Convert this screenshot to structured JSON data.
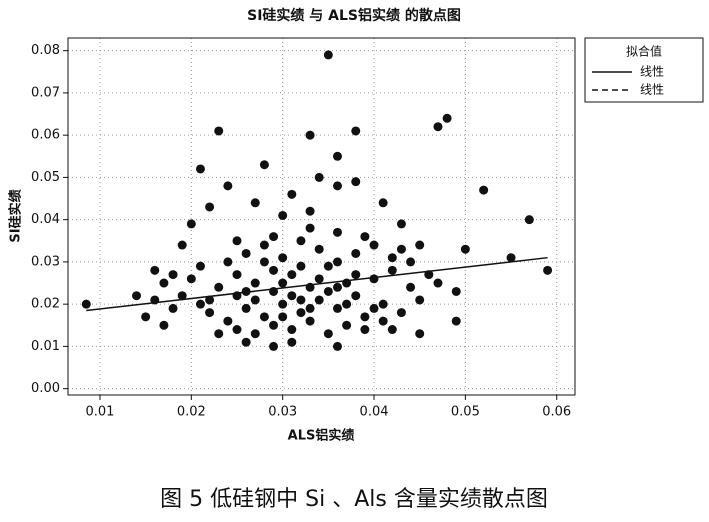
{
  "chart_data": {
    "type": "scatter",
    "title": "SI硅实绩 与 ALS铝实绩 的散点图",
    "x_label": "ALS铝实绩",
    "y_label": "SI硅实绩",
    "caption": "图 5   低硅钢中 Si 、Als 含量实绩散点图",
    "xlim": [
      0.0065,
      0.062
    ],
    "ylim": [
      -0.0015,
      0.083
    ],
    "xticks": [
      0.01,
      0.02,
      0.03,
      0.04,
      0.05,
      0.06
    ],
    "yticks": [
      {
        "value": 0,
        "label": "0.00"
      },
      0.01,
      0.02,
      0.03,
      0.04,
      0.05,
      0.06,
      0.07,
      0.08
    ],
    "grid": true,
    "color": "#111111",
    "points": {
      "x": [
        0.0085,
        0.035,
        0.023,
        0.033,
        0.038,
        0.048,
        0.047,
        0.036,
        0.021,
        0.028,
        0.034,
        0.024,
        0.036,
        0.038,
        0.052,
        0.031,
        0.022,
        0.027,
        0.041,
        0.057,
        0.059,
        0.05,
        0.049,
        0.049,
        0.055,
        0.015,
        0.016,
        0.014,
        0.017,
        0.019,
        0.02,
        0.043,
        0.03,
        0.033,
        0.029,
        0.031,
        0.036,
        0.026,
        0.042,
        0.045,
        0.02,
        0.021,
        0.022,
        0.023,
        0.024,
        0.025,
        0.026,
        0.027,
        0.028,
        0.029,
        0.03,
        0.031,
        0.032,
        0.033,
        0.034,
        0.035,
        0.036,
        0.037,
        0.038,
        0.039,
        0.04,
        0.041,
        0.042,
        0.043,
        0.044,
        0.045,
        0.046,
        0.019,
        0.018,
        0.017,
        0.024,
        0.026,
        0.028,
        0.03,
        0.032,
        0.034,
        0.036,
        0.038,
        0.04,
        0.042,
        0.025,
        0.027,
        0.029,
        0.031,
        0.033,
        0.035,
        0.037,
        0.039,
        0.041,
        0.023,
        0.029,
        0.031,
        0.033,
        0.035,
        0.027,
        0.025,
        0.03,
        0.032,
        0.034,
        0.036,
        0.028,
        0.03,
        0.032,
        0.026,
        0.038,
        0.04,
        0.022,
        0.044,
        0.047,
        0.021,
        0.036,
        0.033,
        0.029,
        0.039,
        0.025,
        0.045,
        0.018,
        0.016,
        0.043,
        0.037
      ],
      "y": [
        0.02,
        0.079,
        0.061,
        0.06,
        0.061,
        0.064,
        0.062,
        0.055,
        0.052,
        0.053,
        0.05,
        0.048,
        0.048,
        0.049,
        0.047,
        0.046,
        0.043,
        0.044,
        0.044,
        0.04,
        0.028,
        0.033,
        0.023,
        0.016,
        0.031,
        0.017,
        0.028,
        0.022,
        0.015,
        0.034,
        0.039,
        0.039,
        0.041,
        0.042,
        0.01,
        0.011,
        0.01,
        0.011,
        0.014,
        0.013,
        0.026,
        0.02,
        0.018,
        0.024,
        0.016,
        0.022,
        0.019,
        0.025,
        0.017,
        0.023,
        0.02,
        0.027,
        0.018,
        0.024,
        0.021,
        0.029,
        0.019,
        0.025,
        0.022,
        0.017,
        0.026,
        0.02,
        0.028,
        0.018,
        0.024,
        0.021,
        0.027,
        0.022,
        0.019,
        0.025,
        0.03,
        0.032,
        0.034,
        0.031,
        0.035,
        0.033,
        0.03,
        0.032,
        0.034,
        0.031,
        0.014,
        0.013,
        0.015,
        0.014,
        0.016,
        0.013,
        0.015,
        0.014,
        0.016,
        0.013,
        0.028,
        0.022,
        0.019,
        0.023,
        0.021,
        0.027,
        0.025,
        0.029,
        0.026,
        0.024,
        0.03,
        0.017,
        0.021,
        0.023,
        0.027,
        0.019,
        0.021,
        0.03,
        0.025,
        0.029,
        0.037,
        0.038,
        0.036,
        0.036,
        0.035,
        0.034,
        0.027,
        0.021,
        0.033,
        0.02
      ]
    },
    "legend_title": "拟合值",
    "fits": [
      {
        "name": "线性",
        "dash": "solid",
        "x": [
          0.0085,
          0.059
        ],
        "y": [
          0.0185,
          0.031
        ]
      },
      {
        "name": "线性",
        "dash": "dashed"
      }
    ]
  }
}
